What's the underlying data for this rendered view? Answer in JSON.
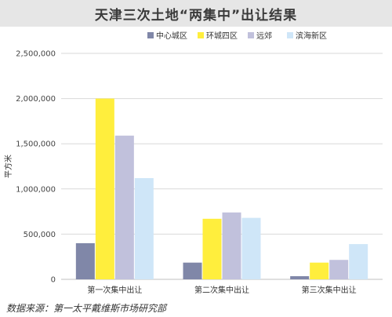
{
  "header": {
    "title": "天津三次土地“两集中”出让结果"
  },
  "source": "数据来源：第一太平戴维斯市场研究部",
  "colors": {
    "中心城区": "#8087a8",
    "环城四区": "#ffee3d",
    "远郊": "#c1c1dc",
    "滨海新区": "#cfe6f8"
  },
  "chart_data": {
    "type": "bar",
    "title": "天津三次土地“两集中”出让结果",
    "xlabel": "",
    "ylabel": "平方米",
    "categories": [
      "第一次集中出让",
      "第二次集中出让",
      "第三次集中出让"
    ],
    "series": [
      {
        "name": "中心城区",
        "values": [
          400000,
          185000,
          35000
        ]
      },
      {
        "name": "环城四区",
        "values": [
          2000000,
          670000,
          185000
        ]
      },
      {
        "name": "远郊",
        "values": [
          1590000,
          740000,
          215000
        ]
      },
      {
        "name": "滨海新区",
        "values": [
          1120000,
          680000,
          390000
        ]
      }
    ],
    "ylim": [
      0,
      2500000
    ],
    "yticks": [
      0,
      500000,
      1000000,
      1500000,
      2000000,
      2500000
    ],
    "ytick_labels": [
      "0",
      "500,000",
      "1,000,000",
      "1,500,000",
      "2,000,000",
      "2,500,000"
    ],
    "grid": true,
    "legend": "top"
  }
}
